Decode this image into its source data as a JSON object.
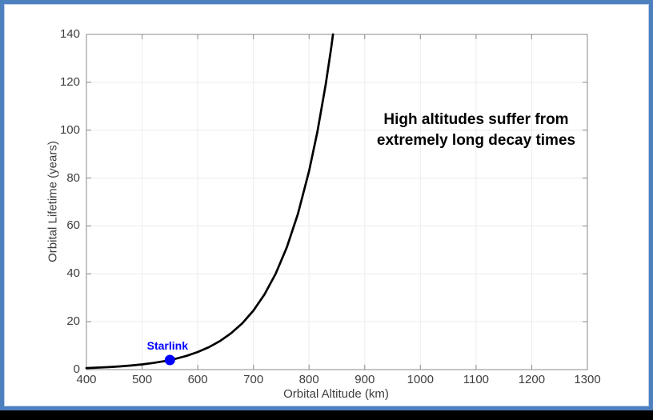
{
  "window": {
    "border_color": "#4d80be",
    "border_inner_highlight": "#b9cfe9",
    "background": "#ffffff",
    "letterbox_color": "#000000"
  },
  "axes_style": {
    "box_color": "#8a8a8a",
    "grid_color": "#ececec",
    "tick_color": "#8a8a8a",
    "tick_label_color": "#3f3f3f",
    "axis_label_color": "#3d3d3d"
  },
  "chart_data": {
    "type": "line",
    "title": "",
    "xlabel": "Orbital Altitude (km)",
    "ylabel": "Orbital Lifetime (years)",
    "xlim": [
      400,
      1300
    ],
    "ylim": [
      0,
      140
    ],
    "xticks": [
      400,
      500,
      600,
      700,
      800,
      900,
      1000,
      1100,
      1200,
      1300
    ],
    "yticks": [
      0,
      20,
      40,
      60,
      80,
      100,
      120,
      140
    ],
    "grid": true,
    "legend": "none",
    "series": [
      {
        "name": "orbital-lifetime-curve",
        "color": "#000000",
        "line_width": 2.7,
        "x": [
          400,
          420,
          440,
          460,
          480,
          500,
          520,
          540,
          560,
          580,
          600,
          620,
          640,
          660,
          680,
          700,
          720,
          740,
          760,
          780,
          800,
          815,
          830,
          840,
          843
        ],
        "y": [
          0.65,
          0.83,
          1.05,
          1.34,
          1.71,
          2.18,
          2.78,
          3.55,
          4.52,
          5.76,
          7.34,
          9.35,
          11.92,
          15.19,
          19.35,
          24.66,
          31.43,
          40.06,
          51.05,
          65.06,
          82.91,
          99.46,
          119.3,
          134.7,
          140
        ]
      }
    ],
    "markers": [
      {
        "label": "Starlink",
        "x": 550,
        "y": 4,
        "color": "#0000ff",
        "radius": 6.5
      }
    ],
    "annotations": [
      {
        "line1": "High altitudes suffer from",
        "line2": "extremely long decay times",
        "x": 1100,
        "y": 100,
        "color": "#000000"
      }
    ]
  }
}
